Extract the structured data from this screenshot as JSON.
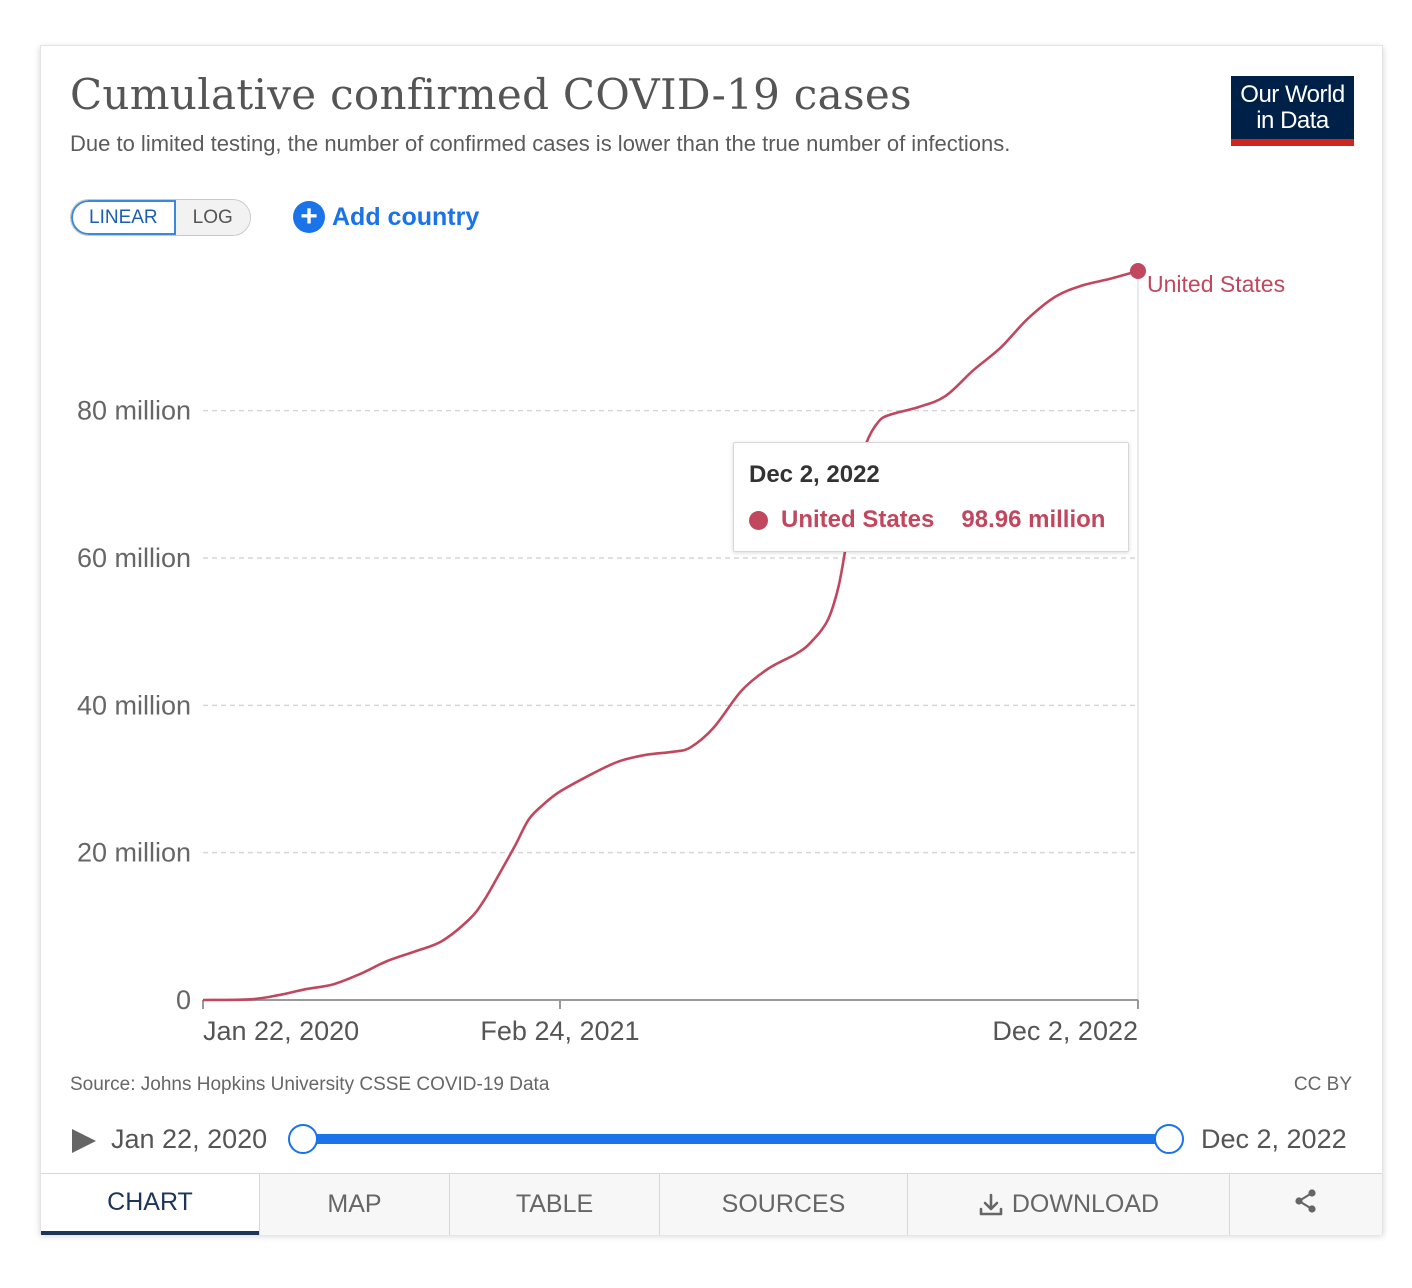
{
  "header": {
    "title": "Cumulative confirmed COVID-19 cases",
    "subtitle": "Due to limited testing, the number of confirmed cases is lower than the true number of infections.",
    "logo_line1": "Our World",
    "logo_line2": "in Data"
  },
  "controls": {
    "scale_linear": "LINEAR",
    "scale_log": "LOG",
    "selected_scale": "LINEAR",
    "add_country": "Add country",
    "plus_icon": "plus-circle-icon"
  },
  "chart_data": {
    "type": "line",
    "title": "Cumulative confirmed COVID-19 cases",
    "xlabel": "",
    "ylabel": "",
    "x_axis_type": "date",
    "xlim": [
      "2020-01-22",
      "2022-12-02"
    ],
    "ylim": [
      0,
      98960000
    ],
    "y_ticks": [
      0,
      20000000,
      40000000,
      60000000,
      80000000
    ],
    "y_tick_labels": [
      "0",
      "20 million",
      "40 million",
      "60 million",
      "80 million"
    ],
    "x_ticks": [
      "2020-01-22",
      "2021-02-24",
      "2022-12-02"
    ],
    "x_tick_labels": [
      "Jan 22, 2020",
      "Feb 24, 2021",
      "Dec 2, 2022"
    ],
    "grid": "horizontal-dashed",
    "series": [
      {
        "name": "United States",
        "color": "#c1475f",
        "points": [
          [
            "2020-01-22",
            0
          ],
          [
            "2020-03-15",
            100000
          ],
          [
            "2020-04-15",
            650000
          ],
          [
            "2020-05-15",
            1450000
          ],
          [
            "2020-06-15",
            2100000
          ],
          [
            "2020-07-15",
            3500000
          ],
          [
            "2020-08-15",
            5300000
          ],
          [
            "2020-09-15",
            6600000
          ],
          [
            "2020-10-15",
            8000000
          ],
          [
            "2020-11-15",
            11000000
          ],
          [
            "2020-12-01",
            13500000
          ],
          [
            "2020-12-20",
            17500000
          ],
          [
            "2021-01-05",
            21000000
          ],
          [
            "2021-01-20",
            24500000
          ],
          [
            "2021-02-05",
            26500000
          ],
          [
            "2021-02-24",
            28300000
          ],
          [
            "2021-04-01",
            30700000
          ],
          [
            "2021-05-01",
            32400000
          ],
          [
            "2021-06-01",
            33300000
          ],
          [
            "2021-07-01",
            33700000
          ],
          [
            "2021-07-20",
            34300000
          ],
          [
            "2021-08-15",
            37000000
          ],
          [
            "2021-09-15",
            42000000
          ],
          [
            "2021-10-15",
            45000000
          ],
          [
            "2021-11-15",
            47000000
          ],
          [
            "2021-12-01",
            48500000
          ],
          [
            "2021-12-20",
            51500000
          ],
          [
            "2022-01-01",
            56000000
          ],
          [
            "2022-01-10",
            62000000
          ],
          [
            "2022-01-20",
            70000000
          ],
          [
            "2022-02-01",
            75500000
          ],
          [
            "2022-02-15",
            78500000
          ],
          [
            "2022-03-01",
            79500000
          ],
          [
            "2022-04-01",
            80500000
          ],
          [
            "2022-05-01",
            82000000
          ],
          [
            "2022-06-01",
            85500000
          ],
          [
            "2022-07-01",
            88500000
          ],
          [
            "2022-08-01",
            92500000
          ],
          [
            "2022-09-01",
            95500000
          ],
          [
            "2022-10-01",
            97000000
          ],
          [
            "2022-11-01",
            97900000
          ],
          [
            "2022-12-02",
            98960000
          ]
        ]
      }
    ],
    "end_label": "United States",
    "tooltip": {
      "date": "Dec 2, 2022",
      "series": "United States",
      "value": "98.96 million"
    }
  },
  "footer": {
    "source": "Source: Johns Hopkins University CSSE COVID-19 Data",
    "license": "CC BY"
  },
  "timeline": {
    "start_label": "Jan 22, 2020",
    "end_label": "Dec 2, 2022",
    "start_fraction": 0,
    "end_fraction": 1,
    "play_icon": "play-icon"
  },
  "tabs": [
    {
      "label": "CHART",
      "active": true
    },
    {
      "label": "MAP",
      "active": false
    },
    {
      "label": "TABLE",
      "active": false
    },
    {
      "label": "SOURCES",
      "active": false
    },
    {
      "label": "DOWNLOAD",
      "active": false,
      "icon": "download-icon"
    },
    {
      "label": "",
      "active": false,
      "icon": "share-icon"
    }
  ]
}
